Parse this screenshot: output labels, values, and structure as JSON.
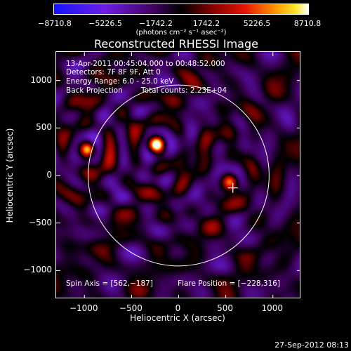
{
  "colorbar": {
    "tick_labels": [
      "−8710.8",
      "−5226.5",
      "−1742.2",
      "1742.2",
      "5226.5",
      "8710.8"
    ],
    "units_label": "(photons cm⁻² s⁻¹ asec⁻²)"
  },
  "chart_data": {
    "type": "heatmap",
    "title": "Reconstructed RHESSI Image",
    "xlabel": "Heliocentric X (arcsec)",
    "ylabel": "Heliocentric Y (arcsec)",
    "xlim": [
      -1300,
      1300
    ],
    "ylim": [
      -1300,
      1300
    ],
    "x_ticks": [
      -1000,
      -500,
      0,
      500,
      1000
    ],
    "y_ticks": [
      -1000,
      -500,
      0,
      500,
      1000
    ],
    "x_tick_labels": [
      "−1000",
      "−500",
      "0",
      "500",
      "1000"
    ],
    "y_tick_labels": [
      "−1000",
      "−500",
      "0",
      "500",
      "1000"
    ],
    "color_range": [
      -8710.8,
      8710.8
    ],
    "solar_disk_radius_arcsec": 960,
    "sources": [
      {
        "x": -970,
        "y": 280,
        "intensity": 7000
      },
      {
        "x": -240,
        "y": 330,
        "intensity": 8710
      },
      {
        "x": 540,
        "y": -60,
        "intensity": 5200
      }
    ],
    "flare_marker": {
      "x": 575,
      "y": -130
    }
  },
  "annotations": {
    "time_range": "13-Apr-2011 00:45:04.000 to 00:48:52.000",
    "detectors": "Detectors: 7F 8F 9F, Att 0",
    "energy": "Energy Range: 6.0 - 25.0 keV",
    "method": "Back Projection",
    "total_counts": "Total counts: 2.23E+04",
    "spin_axis": "Spin Axis = [562,−187]",
    "flare_position": "Flare Position = [−228,316]"
  },
  "timestamp": "27-Sep-2012 08:13"
}
